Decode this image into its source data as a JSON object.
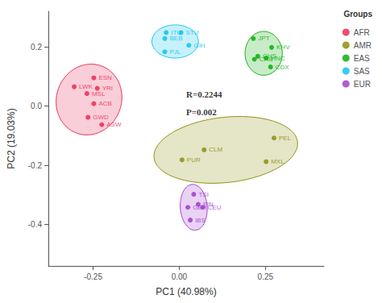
{
  "chart_data": {
    "type": "scatter",
    "xlabel": "PC1 (40.98%)",
    "ylabel": "PC2 (19.03%)",
    "xlim": [
      -0.38,
      0.42
    ],
    "ylim": [
      -0.54,
      0.32
    ],
    "xticks": [
      -0.25,
      {
        "value": 0.0,
        "label": "0.00"
      },
      0.25
    ],
    "yticks": [
      -0.4,
      -0.2,
      {
        "value": 0.0,
        "label": "0.0"
      },
      0.2
    ],
    "grid": false,
    "legend": "upper right",
    "legend_title": "Groups",
    "annotations": [
      {
        "text": "R=0.2244",
        "x": 0.02,
        "y": 0.04
      },
      {
        "text": "P=0.002",
        "x": 0.02,
        "y": -0.02
      }
    ],
    "series": [
      {
        "name": "AFR",
        "color": "#e8214e",
        "labels": [
          "ESN",
          "YRI",
          "LWK",
          "MSL",
          "ACB",
          "GWD",
          "ASW"
        ],
        "x": [
          -0.248,
          -0.238,
          -0.305,
          -0.268,
          -0.248,
          -0.265,
          -0.225
        ],
        "y": [
          0.095,
          0.06,
          0.065,
          0.042,
          0.008,
          -0.038,
          -0.063
        ],
        "ellipse": {
          "cx": -0.262,
          "cy": 0.022,
          "width": 0.19,
          "height": 0.24,
          "angle": -8
        }
      },
      {
        "name": "AMR",
        "color": "#888800",
        "labels": [
          "PEL",
          "CLM",
          "PUR",
          "MXL"
        ],
        "x": [
          0.275,
          0.072,
          0.008,
          0.252
        ],
        "y": [
          -0.108,
          -0.148,
          -0.182,
          -0.188
        ],
        "ellipse": {
          "cx": 0.135,
          "cy": -0.148,
          "width": 0.42,
          "height": 0.22,
          "angle": 8
        }
      },
      {
        "name": "EAS",
        "color": "#00aa00",
        "labels": [
          "JPT",
          "KHV",
          "CHS",
          "CHB",
          "HNC",
          "CDX"
        ],
        "x": [
          0.215,
          0.268,
          0.228,
          0.218,
          0.252,
          0.265
        ],
        "y": [
          0.228,
          0.198,
          0.168,
          0.158,
          0.162,
          0.132
        ],
        "ellipse": {
          "cx": 0.245,
          "cy": 0.178,
          "width": 0.108,
          "height": 0.148,
          "angle": 0
        }
      },
      {
        "name": "SAS",
        "color": "#00bfef",
        "labels": [
          "ITU",
          "STU",
          "BEB",
          "GIH",
          "PJL"
        ],
        "x": [
          -0.038,
          0.005,
          -0.042,
          0.028,
          -0.042
        ],
        "y": [
          0.248,
          0.248,
          0.228,
          0.205,
          0.183
        ],
        "ellipse": {
          "cx": -0.012,
          "cy": 0.218,
          "width": 0.135,
          "height": 0.112,
          "angle": 0
        }
      },
      {
        "name": "EUR",
        "color": "#9933cc",
        "labels": [
          "TSI",
          "FIN",
          "GBR",
          "CEU",
          "IBS"
        ],
        "x": [
          0.042,
          0.055,
          0.025,
          0.068,
          0.032
        ],
        "y": [
          -0.298,
          -0.332,
          -0.342,
          -0.342,
          -0.385
        ],
        "ellipse": {
          "cx": 0.042,
          "cy": -0.342,
          "width": 0.078,
          "height": 0.155,
          "angle": 3
        }
      }
    ]
  }
}
